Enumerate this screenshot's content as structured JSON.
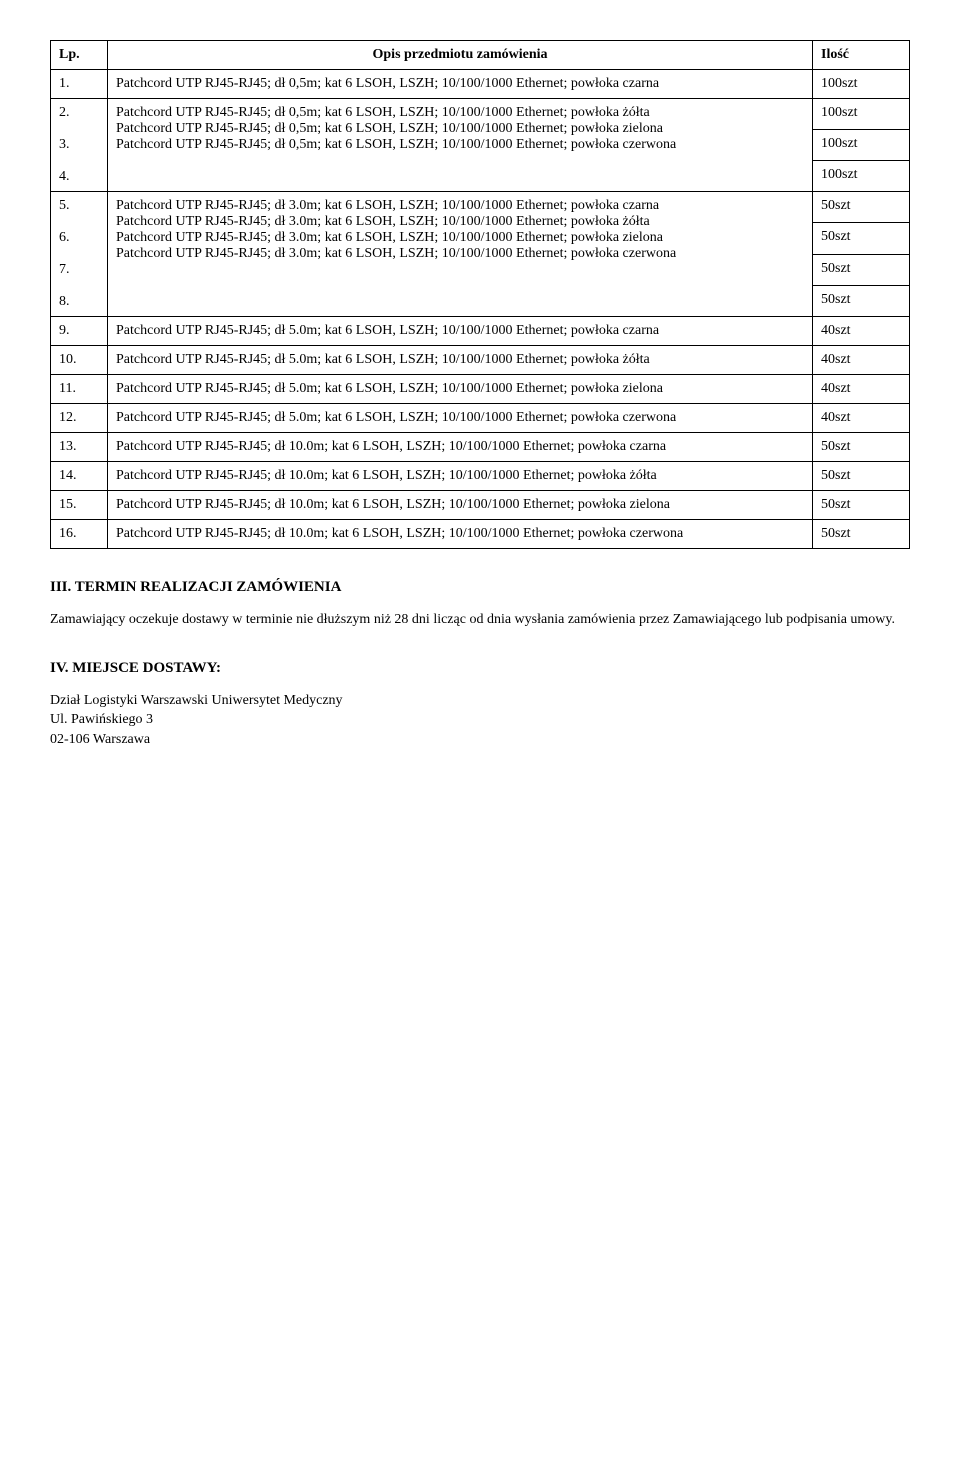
{
  "header": {
    "lp": "Lp.",
    "desc": "Opis przedmiotu zamówienia",
    "qty": "Ilość"
  },
  "rows_a": [
    {
      "lp": "1.",
      "desc": "Patchcord UTP RJ45-RJ45; dł 0,5m; kat 6 LSOH, LSZH; 10/100/1000 Ethernet; powłoka czarna",
      "qty": "100szt"
    }
  ],
  "rows_b": [
    {
      "lp": "2.",
      "desc": "Patchcord UTP RJ45-RJ45; dł 0,5m; kat 6 LSOH, LSZH; 10/100/1000 Ethernet; powłoka żółta",
      "qty": "100szt"
    },
    {
      "lp": "3.",
      "desc": "Patchcord UTP RJ45-RJ45; dł 0,5m; kat 6 LSOH, LSZH; 10/100/1000 Ethernet; powłoka zielona",
      "qty": "100szt"
    },
    {
      "lp": "4.",
      "desc": "Patchcord UTP RJ45-RJ45; dł 0,5m; kat 6 LSOH, LSZH; 10/100/1000 Ethernet; powłoka czerwona",
      "qty": "100szt"
    }
  ],
  "rows_c": [
    {
      "lp": "5.",
      "desc": "Patchcord UTP RJ45-RJ45; dł 3.0m; kat 6 LSOH, LSZH; 10/100/1000 Ethernet; powłoka czarna",
      "qty": "50szt"
    },
    {
      "lp": "6.",
      "desc": "Patchcord UTP RJ45-RJ45; dł 3.0m; kat 6 LSOH, LSZH; 10/100/1000 Ethernet; powłoka żółta",
      "qty": "50szt"
    },
    {
      "lp": "7.",
      "desc": "Patchcord UTP RJ45-RJ45; dł 3.0m; kat 6 LSOH, LSZH; 10/100/1000 Ethernet; powłoka zielona",
      "qty": "50szt"
    },
    {
      "lp": "8.",
      "desc": "Patchcord UTP RJ45-RJ45; dł 3.0m; kat 6 LSOH, LSZH; 10/100/1000 Ethernet; powłoka czerwona",
      "qty": "50szt"
    }
  ],
  "rows_single": [
    {
      "lp": "9.",
      "desc": "Patchcord UTP RJ45-RJ45; dł 5.0m; kat 6 LSOH, LSZH; 10/100/1000 Ethernet; powłoka czarna",
      "qty": "40szt"
    },
    {
      "lp": "10.",
      "desc": "Patchcord UTP RJ45-RJ45; dł 5.0m; kat 6 LSOH, LSZH; 10/100/1000 Ethernet; powłoka żółta",
      "qty": "40szt"
    },
    {
      "lp": "11.",
      "desc": "Patchcord UTP RJ45-RJ45; dł 5.0m; kat 6 LSOH, LSZH; 10/100/1000 Ethernet; powłoka zielona",
      "qty": "40szt"
    },
    {
      "lp": "12.",
      "desc": "Patchcord UTP RJ45-RJ45; dł 5.0m; kat 6 LSOH, LSZH; 10/100/1000 Ethernet; powłoka czerwona",
      "qty": "40szt"
    },
    {
      "lp": "13.",
      "desc": "Patchcord UTP RJ45-RJ45; dł 10.0m; kat 6 LSOH, LSZH; 10/100/1000 Ethernet; powłoka czarna",
      "qty": "50szt"
    },
    {
      "lp": "14.",
      "desc": "Patchcord UTP RJ45-RJ45; dł 10.0m; kat 6 LSOH, LSZH; 10/100/1000 Ethernet; powłoka żółta",
      "qty": "50szt"
    },
    {
      "lp": "15.",
      "desc": "Patchcord UTP RJ45-RJ45; dł 10.0m; kat 6 LSOH, LSZH; 10/100/1000 Ethernet; powłoka zielona",
      "qty": "50szt"
    },
    {
      "lp": "16.",
      "desc": "Patchcord UTP RJ45-RJ45; dł 10.0m; kat 6 LSOH, LSZH; 10/100/1000 Ethernet; powłoka czerwona",
      "qty": "50szt"
    }
  ],
  "section3": {
    "heading": "III. TERMIN REALIZACJI ZAMÓWIENIA",
    "text": "Zamawiający oczekuje dostawy w terminie nie dłuższym niż 28 dni licząc od dnia wysłania zamówienia przez Zamawiającego lub podpisania umowy."
  },
  "section4": {
    "heading": "IV. MIEJSCE DOSTAWY:",
    "line1": "Dział Logistyki Warszawski Uniwersytet Medyczny",
    "line2": "Ul. Pawińskiego 3",
    "line3": "02-106 Warszawa"
  }
}
